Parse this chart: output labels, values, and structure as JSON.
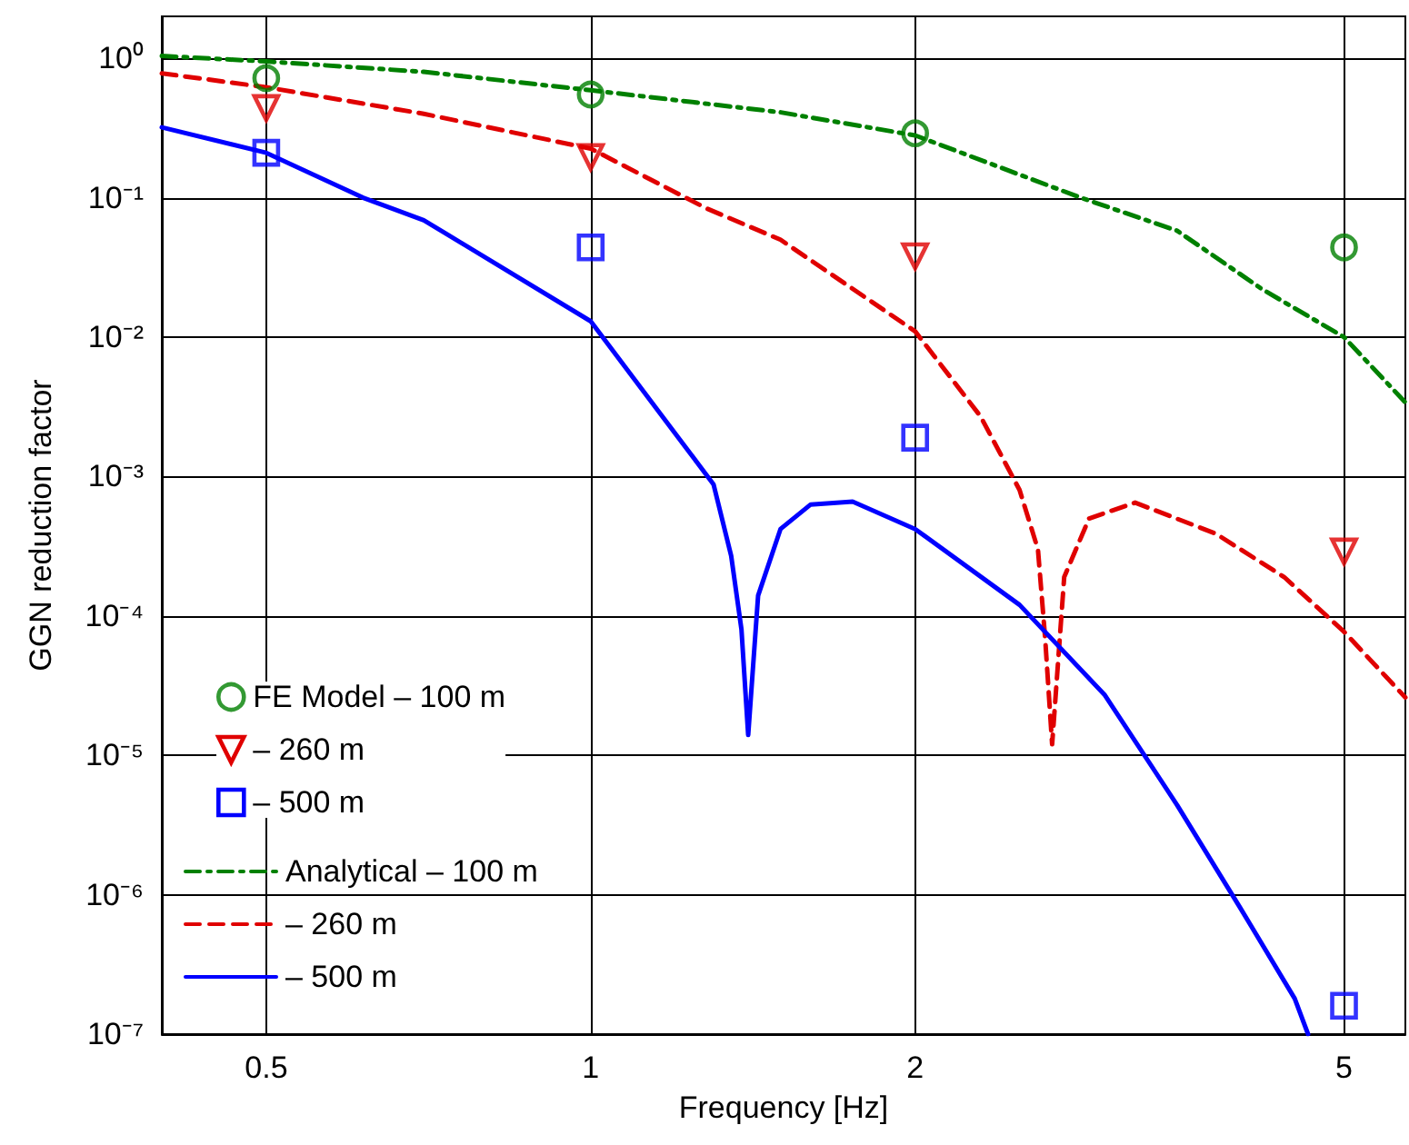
{
  "chart_data": {
    "type": "line",
    "xlabel": "Frequency [Hz]",
    "ylabel": "GGN reduction factor",
    "log": "xy",
    "grid": true,
    "legend": "bottom left",
    "xlim": [
      0.4,
      5.7
    ],
    "xticks": [
      0.5,
      1,
      2,
      5
    ],
    "ylim": [
      1e-07,
      2
    ],
    "yticks": [
      {
        "value": 1e-07,
        "label": "10⁻⁷"
      },
      {
        "value": 1e-06,
        "label": "10⁻⁶"
      },
      {
        "value": 1e-05,
        "label": "10⁻⁵"
      },
      {
        "value": 0.0001,
        "label": "10⁻⁴"
      },
      {
        "value": 0.001,
        "label": "10⁻³"
      },
      {
        "value": 0.01,
        "label": "10⁻²"
      },
      {
        "value": 0.1,
        "label": "10⁻¹"
      },
      {
        "value": 1,
        "label": "10⁰"
      }
    ],
    "series": [
      {
        "name": "FE Model – 100 m",
        "type": "scatter",
        "marker": "circle",
        "color": "#008000",
        "x": [
          0.5,
          1,
          2,
          5
        ],
        "values": [
          0.72,
          0.55,
          0.29,
          0.044
        ]
      },
      {
        "name": "– 260 m",
        "type": "scatter",
        "marker": "triangle",
        "color": "#e00000",
        "x": [
          0.5,
          1,
          2,
          5
        ],
        "values": [
          0.44,
          0.196,
          0.038,
          0.00029
        ]
      },
      {
        "name": "– 500 m",
        "type": "scatter",
        "marker": "square",
        "color": "#0000ff",
        "x": [
          0.5,
          1,
          2,
          5
        ],
        "values": [
          0.21,
          0.044,
          0.0019,
          1.6e-07
        ]
      },
      {
        "name": "Analytical – 100 m",
        "type": "line",
        "marker": "none",
        "line_style": "dashdot",
        "color": "#008000",
        "x": [
          0.4,
          0.5,
          0.7,
          1,
          1.5,
          2,
          2.85,
          3.5,
          4.2,
          5,
          5.7
        ],
        "values": [
          1.04,
          0.95,
          0.8,
          0.59,
          0.41,
          0.28,
          0.1,
          0.058,
          0.022,
          0.01,
          0.0034
        ]
      },
      {
        "name": "– 260 m",
        "type": "line",
        "marker": "none",
        "line_style": "dashed",
        "color": "#e00000",
        "x": [
          0.4,
          0.5,
          0.7,
          1,
          1.28,
          1.5,
          2,
          2.3,
          2.5,
          2.6,
          2.64,
          2.68,
          2.75,
          2.9,
          3.2,
          3.8,
          4.4,
          5,
          5.7
        ],
        "values": [
          0.78,
          0.62,
          0.4,
          0.225,
          0.084,
          0.05,
          0.011,
          0.0027,
          0.0008,
          0.0003,
          7e-05,
          1.2e-05,
          0.00019,
          0.0005,
          0.00065,
          0.00039,
          0.00019,
          7.7e-05,
          2.6e-05
        ]
      },
      {
        "name": "– 500 m",
        "type": "line",
        "marker": "none",
        "line_style": "solid",
        "color": "#0000ff",
        "x": [
          0.4,
          0.5,
          0.615,
          0.7,
          1,
          1.2,
          1.3,
          1.35,
          1.38,
          1.4,
          1.43,
          1.5,
          1.6,
          1.75,
          2,
          2.5,
          3,
          3.5,
          4,
          4.5,
          4.63
        ],
        "values": [
          0.32,
          0.21,
          0.1,
          0.069,
          0.013,
          0.002,
          0.00088,
          0.00027,
          8e-05,
          1.4e-05,
          0.00014,
          0.00042,
          0.00063,
          0.00066,
          0.00042,
          0.00012,
          2.7e-05,
          4.4e-06,
          8.2e-07,
          1.8e-07,
          1e-07
        ]
      }
    ]
  }
}
